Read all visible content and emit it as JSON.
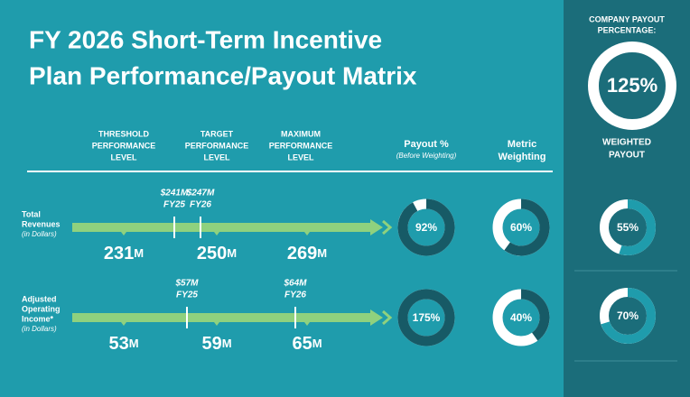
{
  "title_lines": [
    "FY 2026 Short-Term Incentive",
    "Plan Performance/Payout Matrix"
  ],
  "level_headers": [
    [
      "THRESHOLD",
      "PERFORMANCE",
      "LEVEL"
    ],
    [
      "TARGET",
      "PERFORMANCE",
      "LEVEL"
    ],
    [
      "MAXIMUM",
      "PERFORMANCE",
      "LEVEL"
    ]
  ],
  "payout_header": {
    "title": "Payout %",
    "note": "(Before Weighting)"
  },
  "weighting_header": [
    "Metric",
    "Weighting"
  ],
  "company_payout": {
    "label_lines": [
      "COMPANY PAYOUT",
      "PERCENTAGE:"
    ],
    "value": 125,
    "label": "125%"
  },
  "weighted_header": [
    "WEIGHTED",
    "PAYOUT"
  ],
  "rows": [
    {
      "name_lines": [
        "Total",
        "Revenues"
      ],
      "note": "(in Dollars)",
      "levels": [
        {
          "value": 231,
          "unit": "M"
        },
        {
          "value": 250,
          "unit": "M"
        },
        {
          "value": 269,
          "unit": "M"
        }
      ],
      "markers": [
        {
          "amount": "$241M",
          "year": "FY25"
        },
        {
          "amount": "$247M",
          "year": "FY26"
        }
      ],
      "payout": {
        "value": 92,
        "label": "92%"
      },
      "weighting": {
        "value": 60,
        "label": "60%"
      },
      "weighted_payout": {
        "value": 55,
        "label": "55%"
      }
    },
    {
      "name_lines": [
        "Adjusted",
        "Operating",
        "Income*"
      ],
      "note": "(in Dollars)",
      "levels": [
        {
          "value": 53,
          "unit": "M"
        },
        {
          "value": 59,
          "unit": "M"
        },
        {
          "value": 65,
          "unit": "M"
        }
      ],
      "markers": [
        {
          "amount": "$57M",
          "year": "FY25"
        },
        {
          "amount": "$64M",
          "year": "FY26"
        }
      ],
      "payout": {
        "value": 175,
        "label": "175%"
      },
      "weighting": {
        "value": 40,
        "label": "40%"
      },
      "weighted_payout": {
        "value": 70,
        "label": "70%"
      }
    }
  ]
}
